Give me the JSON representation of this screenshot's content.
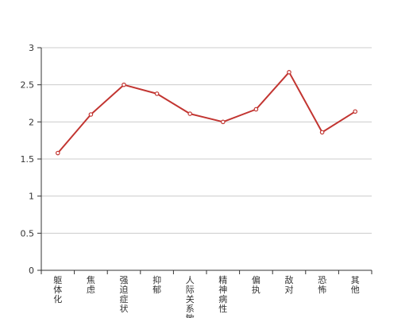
{
  "chart_data": {
    "type": "line",
    "categories": [
      "躯体化",
      "焦虑",
      "强迫症状",
      "抑郁",
      "人际关系敏感",
      "精神病性",
      "偏执",
      "敌对",
      "恐怖",
      "其他"
    ],
    "series": [
      {
        "values": [
          1.58,
          2.1,
          2.5,
          2.38,
          2.11,
          2.0,
          2.17,
          2.67,
          1.86,
          2.14
        ]
      }
    ],
    "ylim": [
      0,
      3
    ],
    "yticks": [
      0,
      0.5,
      1,
      1.5,
      2,
      2.5,
      3
    ],
    "grid": true,
    "legend": "none",
    "colors": {
      "line": "#c23531",
      "axis": "#333333",
      "grid": "#cccccc",
      "point_fill": "#ffffff"
    }
  }
}
